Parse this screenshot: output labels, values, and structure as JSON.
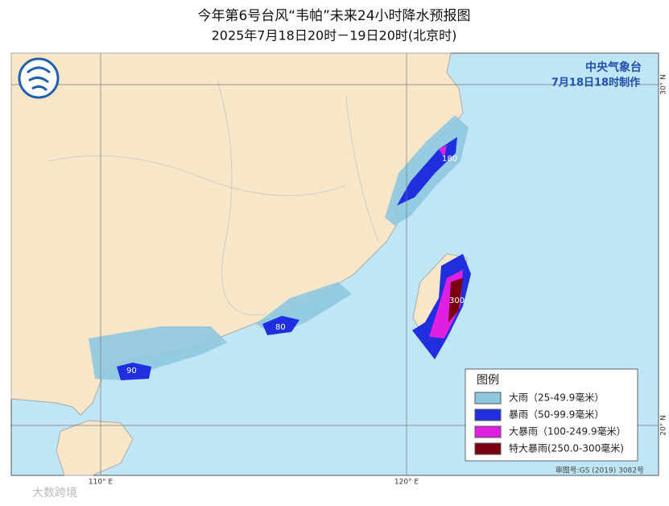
{
  "header": {
    "title": "今年第6号台风“韦帕”未来24小时降水预报图",
    "subtitle": "2025年7月18日20时－19日20时(北京时)"
  },
  "agency": {
    "name": "中央气象台",
    "issued": "7月18日18时制作"
  },
  "legend": {
    "title": "图例",
    "items": [
      "大雨（25-49.9毫米）",
      "暴雨（50-99.9毫米）",
      "大暴雨（100-249.9毫米）",
      "特大暴雨(250.0-300毫米)"
    ]
  },
  "annotations": [
    "180",
    "300",
    "80",
    "90"
  ],
  "grid_labels": {
    "lon": [
      "110° E",
      "120° E"
    ],
    "lat": [
      "30° N",
      "20° N"
    ]
  },
  "footer": {
    "approval": "审图号:GS (2019) 3082号",
    "watermark": "大数跨境"
  }
}
